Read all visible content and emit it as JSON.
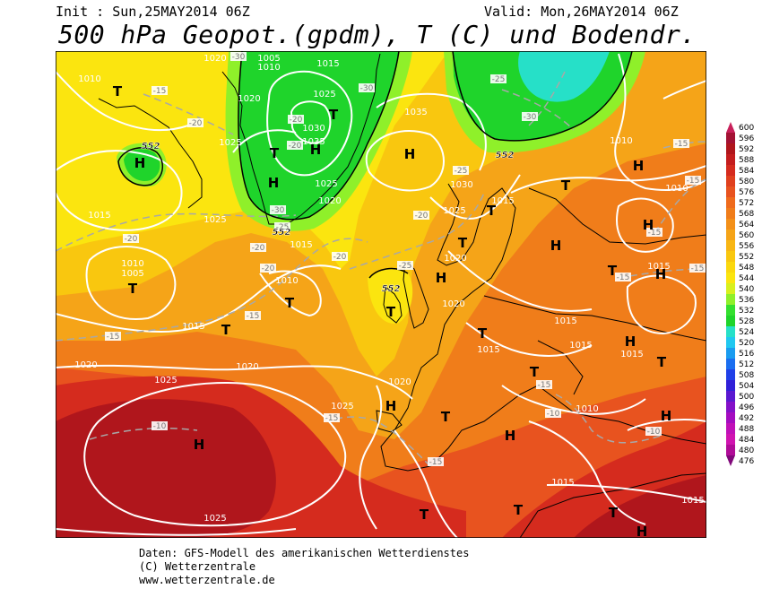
{
  "header": {
    "init": "Init : Sun,25MAY2014 06Z",
    "valid": "Valid: Mon,26MAY2014 06Z",
    "title": "500 hPa Geopot.(gpdm), T (C) und Bodendr. (hPa)"
  },
  "credits": {
    "line1": "Daten: GFS-Modell des amerikanischen Wetterdienstes",
    "line2": "(C) Wetterzentrale",
    "line3": "www.wetterzentrale.de"
  },
  "colors": {
    "red_dark": "#b0161c",
    "red": "#d52b1e",
    "orange_red": "#e8531f",
    "orange": "#f07d1a",
    "orange_light": "#f5a418",
    "yellow_orange": "#f9c70f",
    "yellow": "#fbe50f",
    "green_light": "#8ff02a",
    "green": "#1fd42b",
    "cyan": "#26e0c8"
  },
  "legend_values": [
    "600",
    "596",
    "592",
    "588",
    "584",
    "580",
    "576",
    "572",
    "568",
    "564",
    "560",
    "556",
    "552",
    "548",
    "544",
    "540",
    "536",
    "532",
    "528",
    "524",
    "520",
    "516",
    "512",
    "508",
    "504",
    "500",
    "496",
    "492",
    "488",
    "484",
    "480",
    "476"
  ],
  "legend_colors": [
    "#c8205a",
    "#a31234",
    "#b0161c",
    "#c41d1e",
    "#d52b1e",
    "#e0401e",
    "#e8531f",
    "#ef6b1c",
    "#f07d1a",
    "#f39019",
    "#f5a418",
    "#f8b614",
    "#f9c70f",
    "#fbd80e",
    "#fbe50f",
    "#d8f01e",
    "#8ff02a",
    "#34e02f",
    "#1fd42b",
    "#26e0c8",
    "#20c8f0",
    "#1a9cf0",
    "#1a6ef0",
    "#2040e8",
    "#3020d8",
    "#5a18d0",
    "#8410c8",
    "#a40cc0",
    "#c010b8",
    "#d014b0",
    "#b00c98",
    "#80087a"
  ],
  "pressure_labels": [
    [
      "1020",
      240,
      68
    ],
    [
      "1005",
      300,
      68
    ],
    [
      "1010",
      300,
      78
    ],
    [
      "1015",
      366,
      74
    ],
    [
      "1010",
      100,
      91
    ],
    [
      "1005",
      1005,
      0
    ],
    [
      "1020",
      278,
      113
    ],
    [
      "1025",
      362,
      108
    ],
    [
      "1030",
      350,
      146
    ],
    [
      "1035",
      350,
      161
    ],
    [
      "1035",
      464,
      128
    ],
    [
      "1025",
      257,
      162
    ],
    [
      "1025",
      364,
      208
    ],
    [
      "1020",
      368,
      227
    ],
    [
      "1030",
      515,
      209
    ],
    [
      "1025",
      507,
      238
    ],
    [
      "1015",
      561,
      227
    ],
    [
      "1015",
      111,
      243
    ],
    [
      "1025",
      240,
      248
    ],
    [
      "1015",
      336,
      276
    ],
    [
      "1010",
      148,
      297
    ],
    [
      "1005",
      148,
      308
    ],
    [
      "1010",
      320,
      316
    ],
    [
      "1020",
      508,
      291
    ],
    [
      "1020",
      506,
      342
    ],
    [
      "1015",
      216,
      367
    ],
    [
      "1015",
      631,
      361
    ],
    [
      "1015",
      545,
      393
    ],
    [
      "1015",
      648,
      388
    ],
    [
      "1015",
      705,
      398
    ],
    [
      "1020",
      96,
      410
    ],
    [
      "1020",
      276,
      412
    ],
    [
      "1025",
      185,
      427
    ],
    [
      "1020",
      446,
      429
    ],
    [
      "1025",
      382,
      456
    ],
    [
      "1010",
      655,
      459
    ],
    [
      "1015",
      628,
      541
    ],
    [
      "1015",
      773,
      561
    ],
    [
      "1025",
      240,
      581
    ],
    [
      "1010",
      693,
      160
    ],
    [
      "1010",
      755,
      213
    ],
    [
      "1015",
      735,
      300
    ]
  ],
  "temp_labels": [
    [
      "-30",
      266,
      66
    ],
    [
      "-15",
      178,
      104
    ],
    [
      "-20",
      218,
      140
    ],
    [
      "-20",
      330,
      136
    ],
    [
      "-30",
      409,
      101
    ],
    [
      "-20",
      329,
      165
    ],
    [
      "-30",
      310,
      237
    ],
    [
      "-25",
      315,
      256
    ],
    [
      "-20",
      470,
      243
    ],
    [
      "-20",
      288,
      279
    ],
    [
      "-20",
      299,
      302
    ],
    [
      "-20",
      379,
      289
    ],
    [
      "-25",
      452,
      299
    ],
    [
      "-20",
      146,
      269
    ],
    [
      "-15",
      282,
      355
    ],
    [
      "-15",
      126,
      378
    ],
    [
      "-25",
      514,
      193
    ],
    [
      "-25",
      556,
      91
    ],
    [
      "-30",
      591,
      133
    ],
    [
      "-15",
      760,
      163
    ],
    [
      "-15",
      773,
      204
    ],
    [
      "-15",
      730,
      262
    ],
    [
      "-15",
      695,
      312
    ],
    [
      "-15",
      778,
      302
    ],
    [
      "-15",
      607,
      432
    ],
    [
      "-10",
      617,
      464
    ],
    [
      "-10",
      729,
      484
    ],
    [
      "-15",
      370,
      469
    ],
    [
      "-10",
      178,
      478
    ],
    [
      "-15",
      486,
      518
    ]
  ],
  "contour_labels": [
    [
      "552",
      168,
      166
    ],
    [
      "552",
      563,
      176
    ],
    [
      "552",
      314,
      262
    ],
    [
      "552",
      436,
      325
    ]
  ],
  "pressure_centers": [
    [
      "T",
      131,
      107
    ],
    [
      "H",
      156,
      187
    ],
    [
      "T",
      372,
      133
    ],
    [
      "H",
      352,
      172
    ],
    [
      "T",
      306,
      176
    ],
    [
      "H",
      305,
      209
    ],
    [
      "H",
      457,
      177
    ],
    [
      "T",
      631,
      212
    ],
    [
      "H",
      712,
      190
    ],
    [
      "T",
      548,
      240
    ],
    [
      "T",
      516,
      276
    ],
    [
      "H",
      492,
      315
    ],
    [
      "H",
      620,
      279
    ],
    [
      "T",
      148,
      327
    ],
    [
      "T",
      323,
      343
    ],
    [
      "T",
      436,
      353
    ],
    [
      "T",
      252,
      373
    ],
    [
      "T",
      538,
      377
    ],
    [
      "T",
      596,
      420
    ],
    [
      "T",
      683,
      307
    ],
    [
      "H",
      737,
      311
    ],
    [
      "H",
      703,
      386
    ],
    [
      "T",
      738,
      409
    ],
    [
      "H",
      723,
      256
    ],
    [
      "H",
      436,
      458
    ],
    [
      "T",
      497,
      470
    ],
    [
      "H",
      569,
      491
    ],
    [
      "H",
      743,
      469
    ],
    [
      "H",
      222,
      501
    ],
    [
      "T",
      473,
      579
    ],
    [
      "T",
      578,
      574
    ],
    [
      "T",
      684,
      577
    ],
    [
      "H",
      716,
      598
    ]
  ]
}
